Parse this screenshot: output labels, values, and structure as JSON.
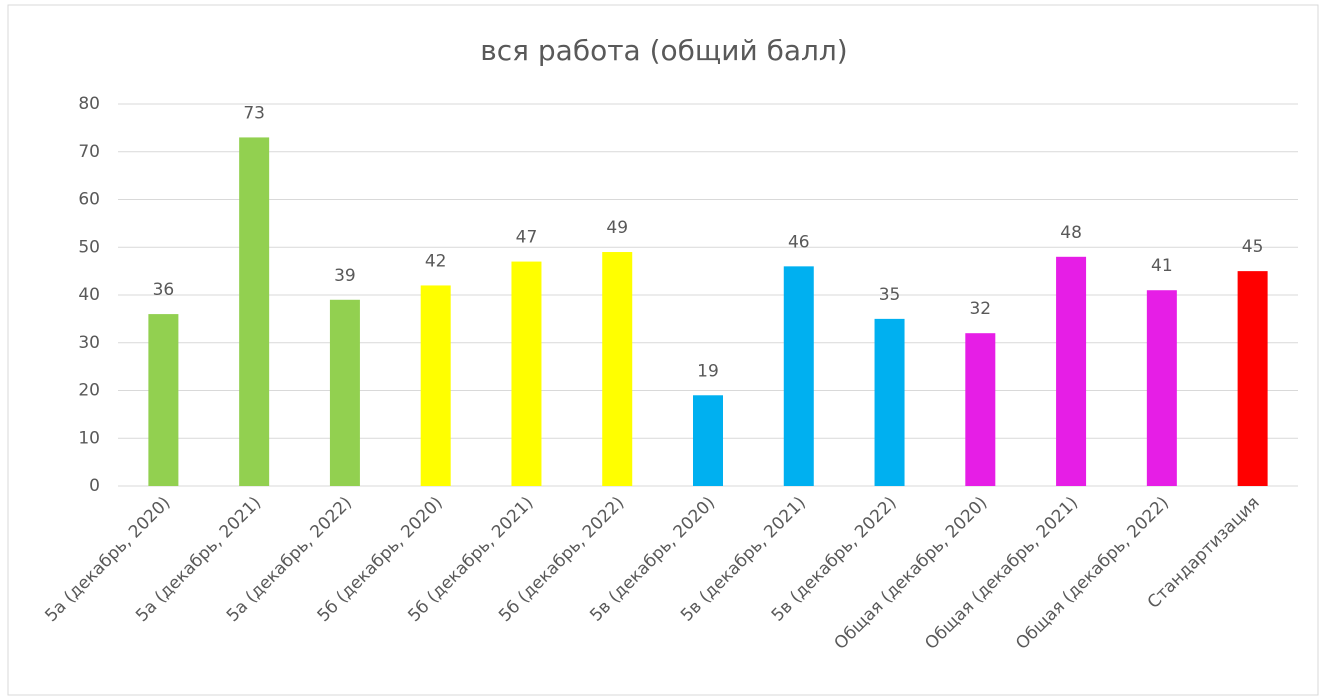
{
  "chart_data": {
    "type": "bar",
    "title": "вся работа (общий балл)",
    "categories": [
      "5а (декабрь, 2020)",
      "5а (декабрь, 2021)",
      "5а (декабрь, 2022)",
      "5б (декабрь, 2020)",
      "5б (декабрь, 2021)",
      "5б (декабрь, 2022)",
      "5в (декабрь, 2020)",
      "5в (декабрь, 2021)",
      "5в (декабрь, 2022)",
      "Общая (декабрь, 2020)",
      "Общая (декабрь, 2021)",
      "Общая (декабрь, 2022)",
      "Стандартизация"
    ],
    "values": [
      36,
      73,
      39,
      42,
      47,
      49,
      19,
      46,
      35,
      32,
      48,
      41,
      45
    ],
    "colors": [
      "#92d050",
      "#92d050",
      "#92d050",
      "#ffff00",
      "#ffff00",
      "#ffff00",
      "#00b0f0",
      "#00b0f0",
      "#00b0f0",
      "#e61ee6",
      "#e61ee6",
      "#e61ee6",
      "#ff0000"
    ],
    "ylim": [
      0,
      80
    ],
    "yticks": [
      0,
      10,
      20,
      30,
      40,
      50,
      60,
      70,
      80
    ],
    "grid": true
  }
}
